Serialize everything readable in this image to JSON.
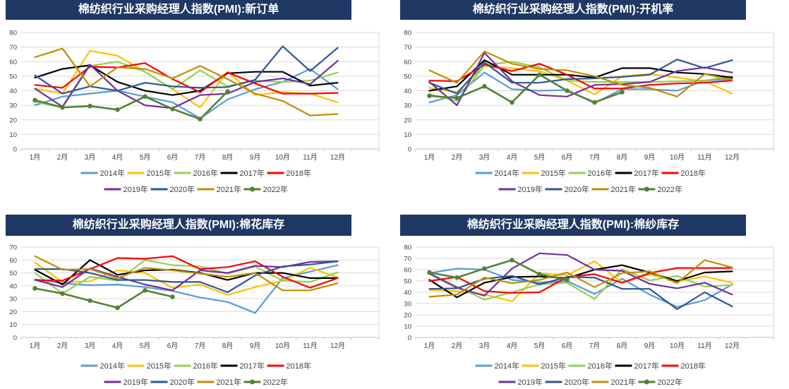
{
  "styles": {
    "title_bar_bg": "#1F3864",
    "title_text_color": "#FFFFFF",
    "grid_color": "#D9D9D9",
    "axis_line_color": "#BFBFBF",
    "axis_text_color": "#404040",
    "legend_text_color": "#404040"
  },
  "chart_data": [
    {
      "type": "line",
      "title": "棉纺织行业采购经理人指数(PMI):新订单",
      "ylim": [
        0,
        80
      ],
      "ytick_step": 10,
      "grid": true,
      "legend_position": "bottom",
      "categories": [
        "1月",
        "2月",
        "3月",
        "4月",
        "5月",
        "6月",
        "7月",
        "8月",
        "9月",
        "10月",
        "11月",
        "12月"
      ],
      "series": [
        {
          "name": "2014年",
          "color": "#5B9BD5",
          "values": [
            30,
            36,
            38,
            40,
            36,
            32,
            21,
            34,
            41,
            46,
            55,
            41
          ]
        },
        {
          "name": "2015年",
          "color": "#FFC000",
          "values": [
            41.5,
            38,
            67.5,
            64,
            53,
            41,
            28.5,
            53,
            37,
            39,
            38,
            32
          ]
        },
        {
          "name": "2016年",
          "color": "#92D050",
          "values": [
            32.5,
            28.5,
            57,
            60,
            53,
            41,
            54,
            43,
            47,
            46,
            47,
            52.5
          ]
        },
        {
          "name": "2017年",
          "color": "#000000",
          "values": [
            49,
            55,
            57.5,
            46,
            40,
            37,
            40,
            52,
            53,
            53,
            43.5,
            45.5
          ]
        },
        {
          "name": "2018年",
          "color": "#FF0000",
          "values": [
            44,
            42,
            56.5,
            56,
            59,
            48,
            39,
            52.5,
            45,
            38,
            38,
            38.5
          ]
        },
        {
          "name": "2019年",
          "color": "#7030A0",
          "values": [
            41.5,
            29,
            58,
            40,
            30,
            28,
            37,
            38,
            46,
            48.5,
            44.5,
            60.5
          ]
        },
        {
          "name": "2020年",
          "color": "#2F5597",
          "values": [
            50.5,
            38,
            43,
            40,
            45.5,
            43,
            42,
            42.5,
            47.5,
            70.5,
            53.5,
            69.5
          ]
        },
        {
          "name": "2021年",
          "color": "#BF8F00",
          "values": [
            63,
            69,
            43,
            56,
            55,
            48.5,
            57,
            48,
            38,
            33,
            23,
            24
          ]
        },
        {
          "name": "2022年",
          "color": "#548235",
          "marker": "circle",
          "values": [
            33.5,
            28.5,
            29.5,
            27,
            36,
            27.5,
            20.5,
            39.5
          ]
        }
      ]
    },
    {
      "type": "line",
      "title": "棉纺织行业采购经理人指数(PMI):开机率",
      "ylim": [
        0,
        80
      ],
      "ytick_step": 10,
      "grid": true,
      "legend_position": "bottom",
      "categories": [
        "1月",
        "2月",
        "3月",
        "4月",
        "5月",
        "6月",
        "7月",
        "8月",
        "9月",
        "10月",
        "11月",
        "12月"
      ],
      "series": [
        {
          "name": "2014年",
          "color": "#5B9BD5",
          "values": [
            32,
            37,
            52.5,
            41,
            40,
            40.5,
            31.5,
            41,
            41,
            40,
            47,
            48
          ]
        },
        {
          "name": "2015年",
          "color": "#FFC000",
          "values": [
            42,
            39,
            57,
            55.5,
            53.5,
            47,
            37.5,
            50,
            51.5,
            49,
            46.5,
            38
          ]
        },
        {
          "name": "2016年",
          "color": "#92D050",
          "values": [
            37.5,
            33,
            57.5,
            60,
            56,
            47,
            46,
            46,
            46,
            46.5,
            47,
            50
          ]
        },
        {
          "name": "2017年",
          "color": "#000000",
          "values": [
            40,
            43,
            61,
            51,
            51,
            51,
            49,
            55.5,
            55.5,
            52.5,
            51.5,
            49
          ]
        },
        {
          "name": "2018年",
          "color": "#FF0000",
          "values": [
            47,
            46.5,
            58,
            53.5,
            58.5,
            51,
            41.5,
            41.5,
            44,
            45,
            45.5,
            47
          ]
        },
        {
          "name": "2019年",
          "color": "#7030A0",
          "values": [
            46,
            30,
            66,
            46.5,
            37,
            36,
            44,
            44.5,
            46,
            53.5,
            56,
            52.5
          ]
        },
        {
          "name": "2020年",
          "color": "#2F5597",
          "values": [
            45.5,
            38,
            59.5,
            45.5,
            45.5,
            48,
            48.5,
            49.5,
            51,
            61.5,
            55.5,
            61
          ]
        },
        {
          "name": "2021年",
          "color": "#BF8F00",
          "values": [
            54,
            45.5,
            67,
            58.5,
            55,
            54,
            50,
            44,
            42,
            36,
            51.5,
            47.5
          ]
        },
        {
          "name": "2022年",
          "color": "#548235",
          "marker": "circle",
          "values": [
            36.5,
            35,
            43,
            32,
            51,
            40,
            32,
            39
          ]
        }
      ]
    },
    {
      "type": "line",
      "title": "棉纺织行业采购经理人指数(PMI):棉花库存",
      "ylim": [
        0,
        70
      ],
      "ytick_step": 10,
      "grid": true,
      "legend_position": "bottom",
      "categories": [
        "1月",
        "2月",
        "3月",
        "4月",
        "5月",
        "6月",
        "7月",
        "8月",
        "9月",
        "10月",
        "11月",
        "12月"
      ],
      "series": [
        {
          "name": "2014年",
          "color": "#5B9BD5",
          "values": [
            45,
            42,
            40.5,
            41,
            39,
            36,
            31,
            27.5,
            19,
            46,
            51,
            56
          ]
        },
        {
          "name": "2015年",
          "color": "#FFC000",
          "values": [
            58,
            43,
            43.5,
            52,
            50,
            38.5,
            41,
            33,
            39,
            44,
            54,
            46.5
          ]
        },
        {
          "name": "2016年",
          "color": "#92D050",
          "values": [
            50,
            34,
            47,
            44,
            60,
            56,
            55,
            49.5,
            55,
            44,
            43,
            50.5
          ]
        },
        {
          "name": "2017年",
          "color": "#000000",
          "values": [
            52.5,
            41,
            60,
            48.5,
            52,
            52.5,
            50,
            44.5,
            50,
            50,
            46,
            46
          ]
        },
        {
          "name": "2018年",
          "color": "#FF0000",
          "values": [
            44.5,
            44,
            53,
            61.5,
            61,
            63,
            53,
            54.5,
            59,
            47,
            38.5,
            46
          ]
        },
        {
          "name": "2019年",
          "color": "#7030A0",
          "values": [
            44.5,
            39,
            53.5,
            47,
            41,
            36.5,
            52,
            50,
            55.5,
            54.5,
            58.5,
            59
          ]
        },
        {
          "name": "2020年",
          "color": "#2F5597",
          "values": [
            53,
            53,
            50,
            44.5,
            44.5,
            43,
            43,
            35,
            48,
            55,
            56.5,
            59
          ]
        },
        {
          "name": "2021年",
          "color": "#BF8F00",
          "values": [
            63,
            52.5,
            53,
            46,
            54,
            52,
            49.5,
            47,
            50,
            36.5,
            36.5,
            42
          ]
        },
        {
          "name": "2022年",
          "color": "#548235",
          "marker": "circle",
          "values": [
            38,
            34,
            28.5,
            23,
            36.5,
            31.5
          ]
        }
      ]
    },
    {
      "type": "line",
      "title": "棉纺织行业采购经理人指数(PMI):棉纱库存",
      "ylim": [
        0,
        80
      ],
      "ytick_step": 10,
      "grid": true,
      "legend_position": "bottom",
      "categories": [
        "1月",
        "2月",
        "3月",
        "4月",
        "5月",
        "6月",
        "7月",
        "8月",
        "9月",
        "10月",
        "11月",
        "12月"
      ],
      "series": [
        {
          "name": "2014年",
          "color": "#5B9BD5",
          "values": [
            57,
            61,
            60,
            51,
            48.5,
            50,
            38.5,
            52,
            38,
            27,
            33,
            47
          ]
        },
        {
          "name": "2015年",
          "color": "#FFC000",
          "values": [
            42,
            41,
            38,
            32,
            57,
            55,
            67.5,
            48.5,
            56,
            49.5,
            54,
            48.5
          ]
        },
        {
          "name": "2016年",
          "color": "#92D050",
          "values": [
            57,
            45,
            33.5,
            40,
            47,
            48.5,
            34,
            60.5,
            50.5,
            54.5,
            45,
            46.5
          ]
        },
        {
          "name": "2017年",
          "color": "#000000",
          "values": [
            51,
            35.5,
            48.5,
            53.5,
            54,
            52.5,
            60,
            64,
            57.5,
            50,
            57.5,
            58.5
          ]
        },
        {
          "name": "2018年",
          "color": "#FF0000",
          "values": [
            50,
            53.5,
            41,
            39.5,
            40,
            53.5,
            56,
            48.5,
            57,
            61.5,
            61.5,
            61.5
          ]
        },
        {
          "name": "2019年",
          "color": "#7030A0",
          "values": [
            56.5,
            44,
            37,
            61,
            74.5,
            73,
            60,
            59,
            47.5,
            43.5,
            48.5,
            38
          ]
        },
        {
          "name": "2020年",
          "color": "#2F5597",
          "values": [
            43,
            43.5,
            52,
            54.5,
            47,
            53.5,
            53,
            43,
            43,
            25,
            40,
            27.5
          ]
        },
        {
          "name": "2021年",
          "color": "#BF8F00",
          "values": [
            36,
            38,
            53,
            48,
            51,
            57.5,
            44.5,
            57,
            58.5,
            48,
            68.5,
            62
          ]
        },
        {
          "name": "2022年",
          "color": "#548235",
          "marker": "circle",
          "values": [
            57.5,
            53,
            61,
            68.5,
            56,
            51
          ]
        }
      ]
    }
  ]
}
